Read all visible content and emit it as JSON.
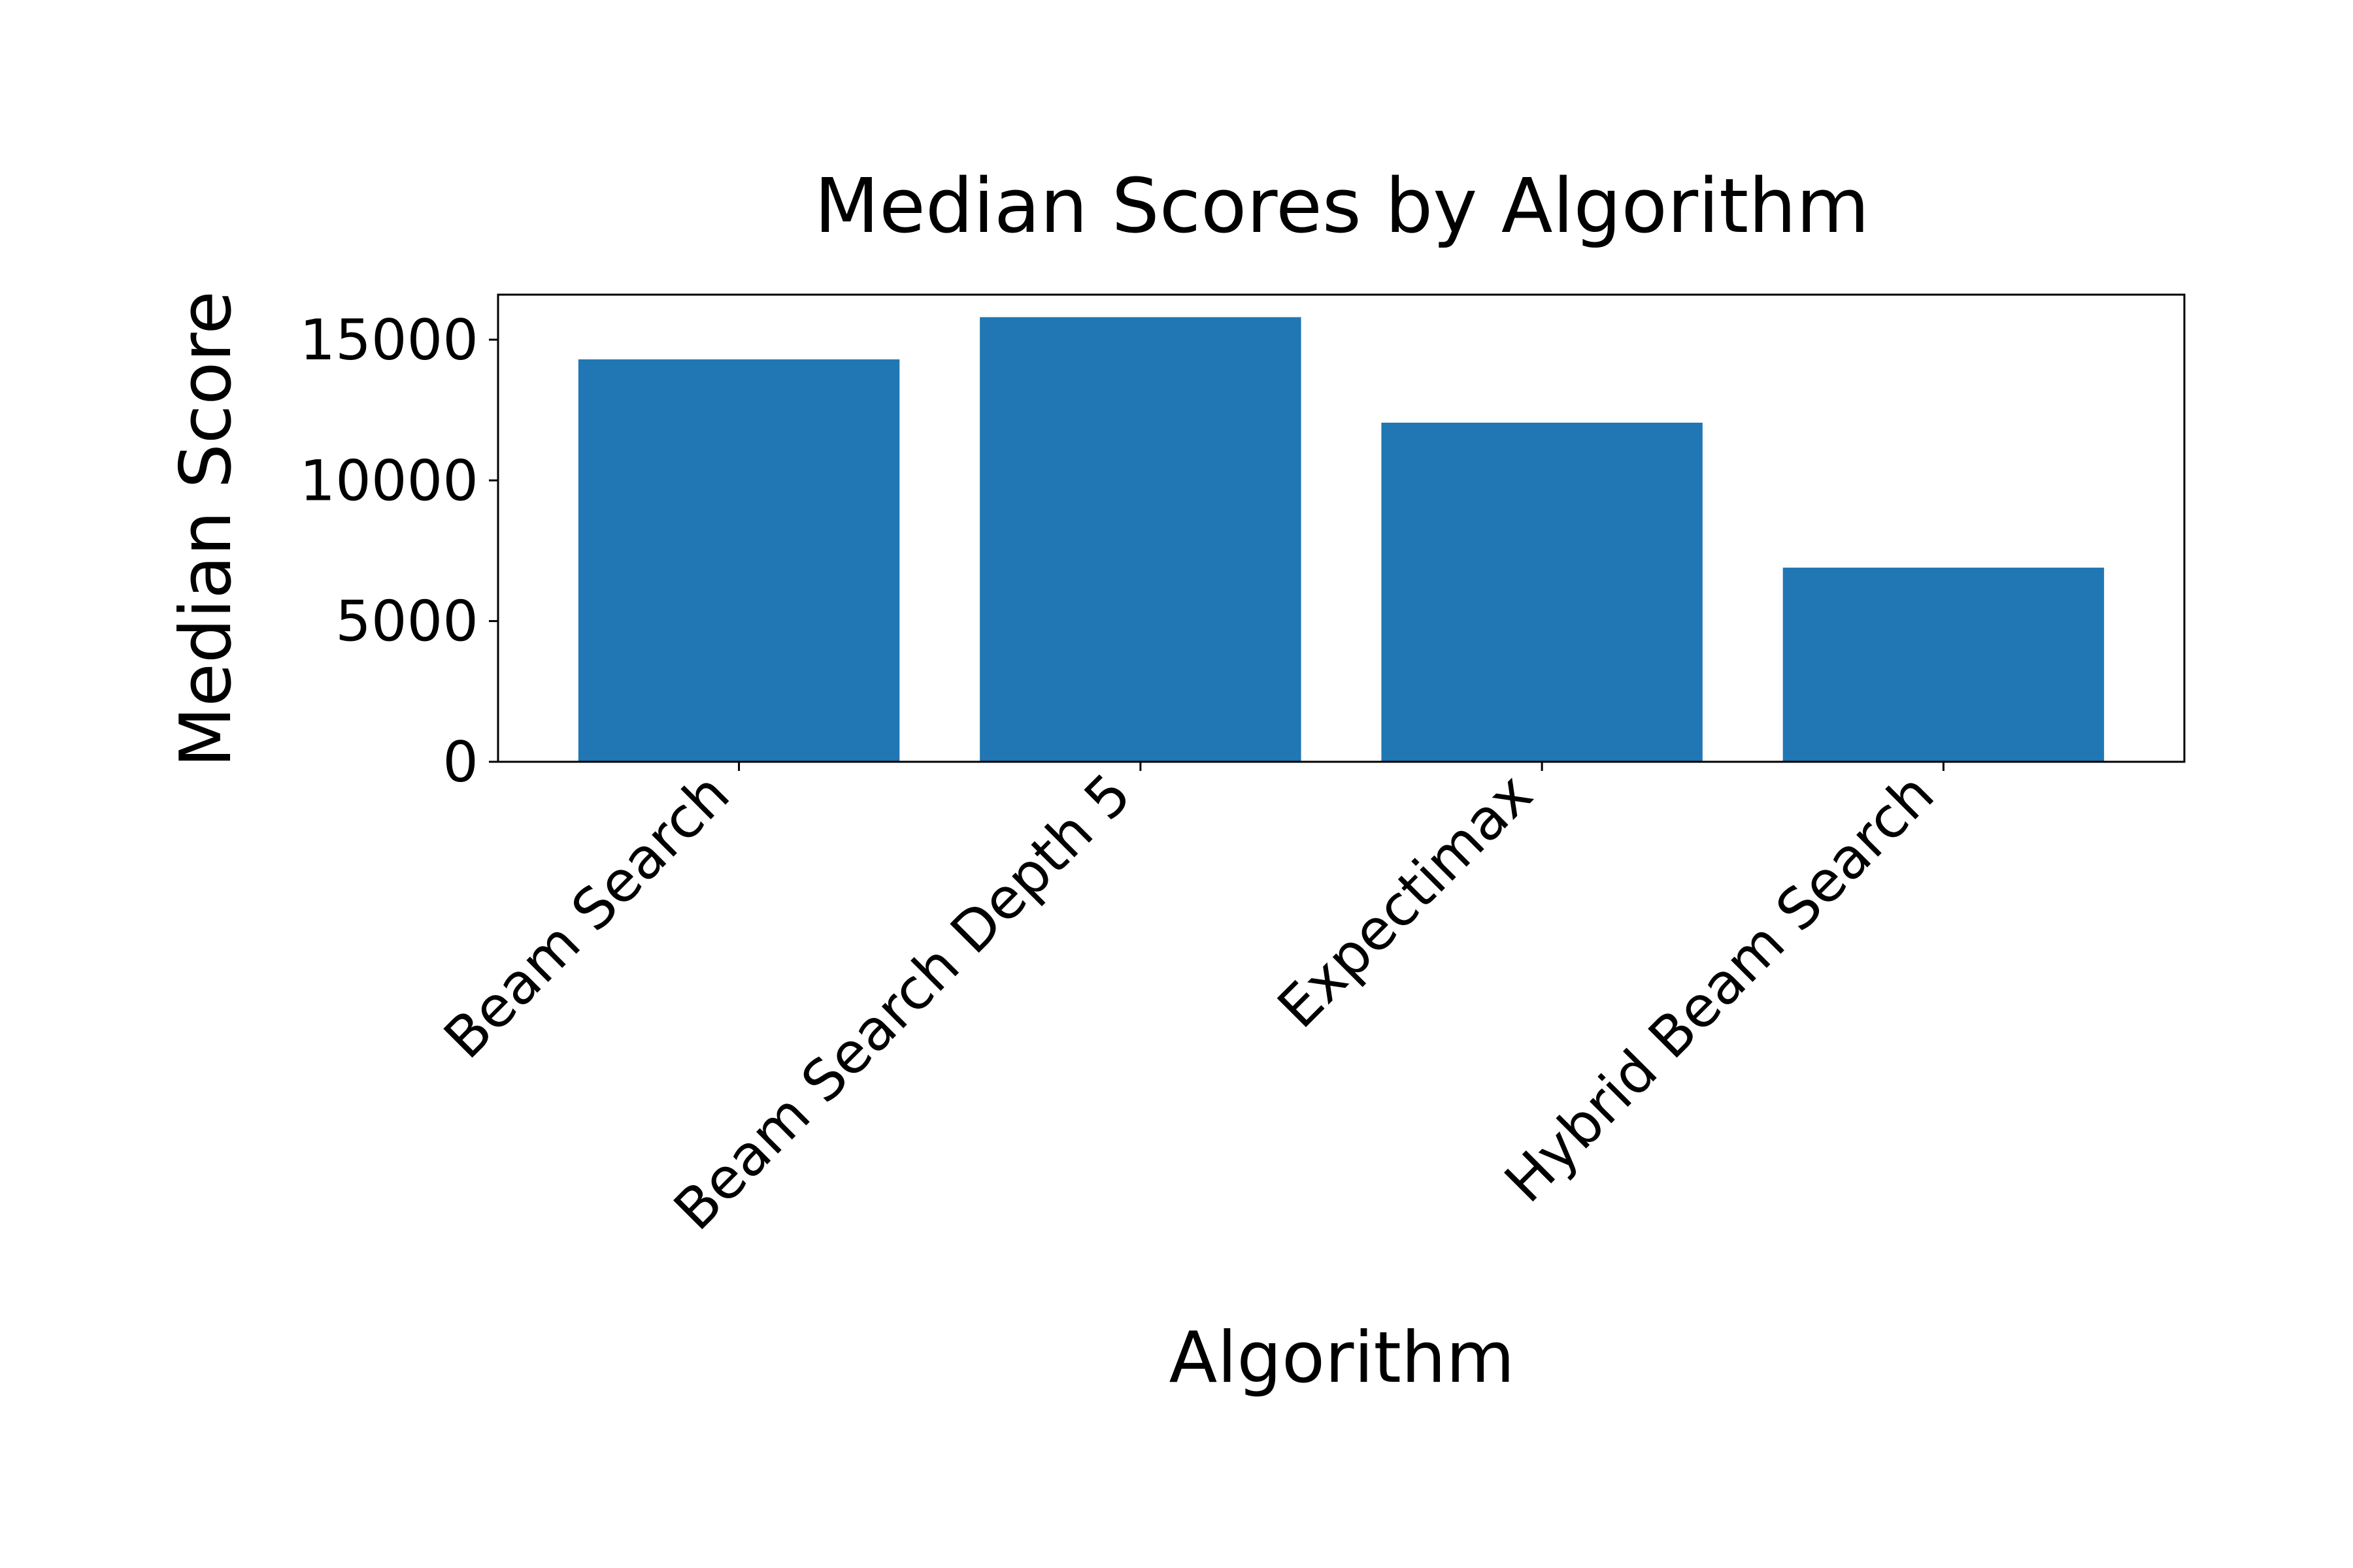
{
  "chart_data": {
    "type": "bar",
    "title": "Median Scores by Algorithm",
    "xlabel": "Algorithm",
    "ylabel": "Median Score",
    "categories": [
      "Beam Search",
      "Beam Search Depth 5",
      "Expectimax",
      "Hybrid Beam Search"
    ],
    "values": [
      14300,
      15800,
      12050,
      6900
    ],
    "yticks": [
      0,
      5000,
      10000,
      15000
    ],
    "ylim": [
      0,
      16600
    ],
    "bar_color": "#2077b4",
    "grid": false,
    "legend": "none"
  }
}
